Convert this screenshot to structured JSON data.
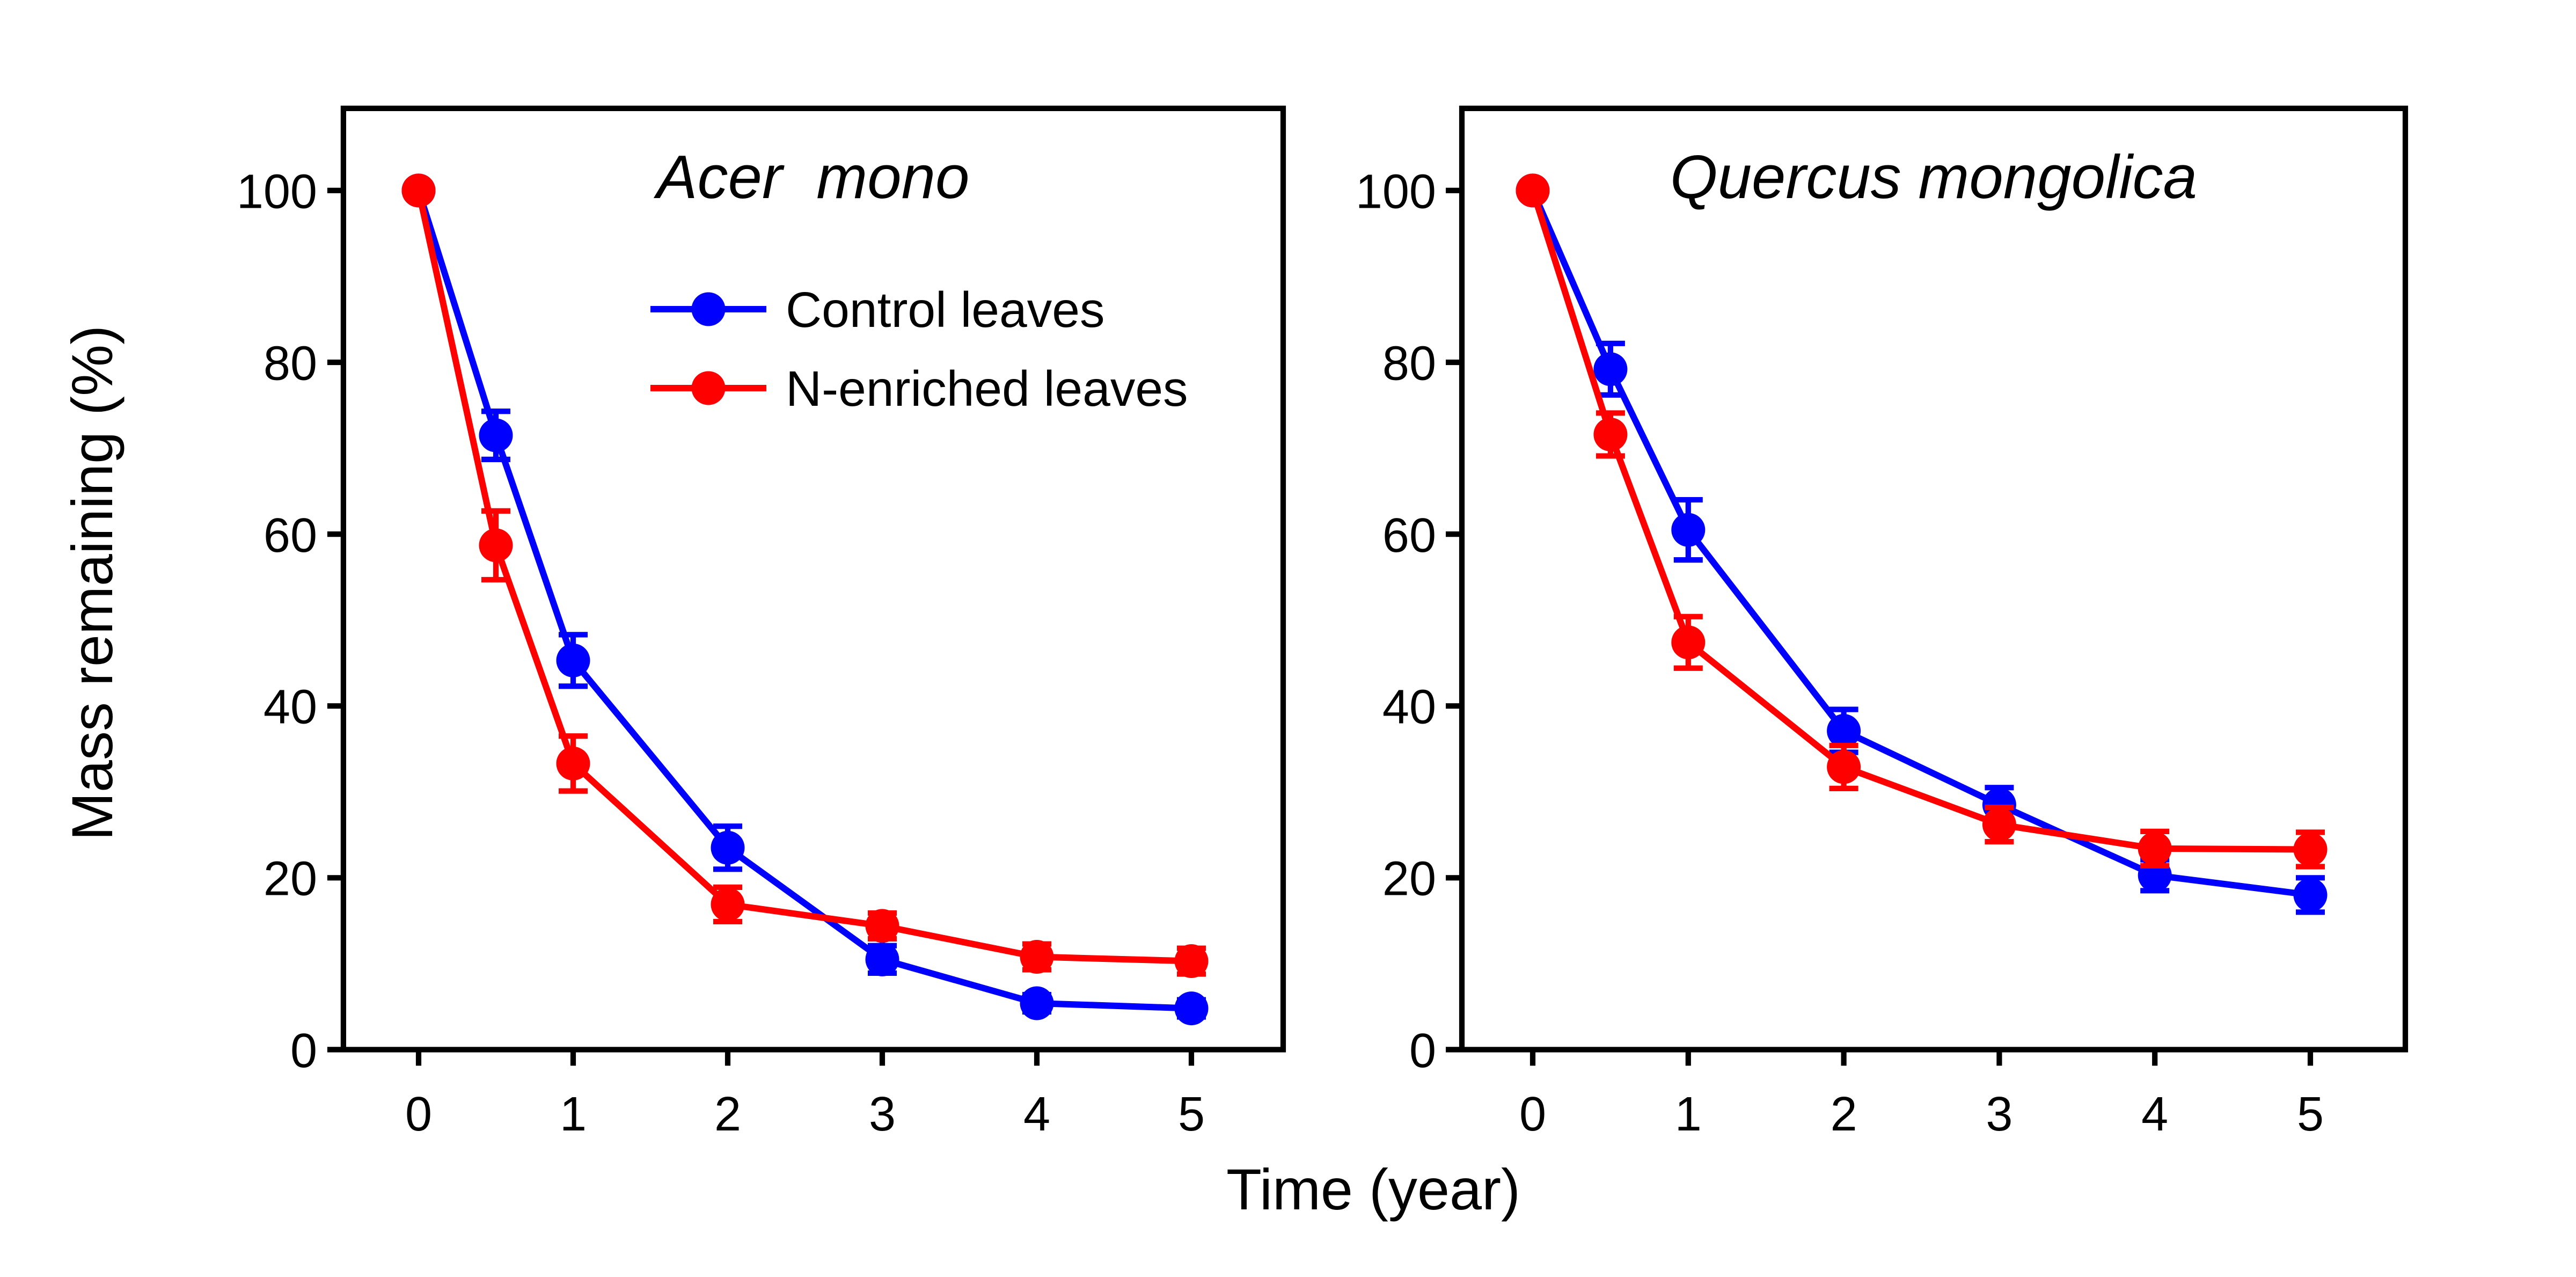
{
  "figure": {
    "background": "#ffffff",
    "x_axis_label": "Time (year)",
    "y_axis_label": "Mass remaining (%)",
    "axis_color": "#000000"
  },
  "legend": {
    "items": [
      {
        "label": "Control leaves",
        "color": "#0000ff"
      },
      {
        "label": "N-enriched leaves",
        "color": "#ff0000"
      }
    ]
  },
  "chart_data": [
    {
      "type": "line",
      "title": "Acer  mono",
      "xlabel": "Time (year)",
      "ylabel": "Mass remaining (%)",
      "x": [
        0,
        0.5,
        1,
        2,
        3,
        4,
        5
      ],
      "x_ticks": [
        0,
        1,
        2,
        3,
        4,
        5
      ],
      "x_tick_labels": [
        "0",
        "1",
        "2",
        "3",
        "4",
        "5"
      ],
      "y_ticks": [
        100,
        80,
        60,
        40,
        20,
        0
      ],
      "y_tick_labels": [
        "100",
        "80",
        "60",
        "40",
        "20",
        "0"
      ],
      "xlim": [
        -0.49,
        5.61
      ],
      "ylim": [
        0,
        109.6
      ],
      "grid": false,
      "series": [
        {
          "name": "Control leaves",
          "color": "#0000ff",
          "values": [
            100,
            71.5,
            45.3,
            23.5,
            10.5,
            5.4,
            4.8
          ],
          "errors": [
            0,
            2.8,
            3.0,
            2.5,
            1.6,
            1.0,
            1.0
          ]
        },
        {
          "name": "N-enriched leaves",
          "color": "#ff0000",
          "values": [
            100,
            58.7,
            33.3,
            16.9,
            14.4,
            10.8,
            10.3
          ],
          "errors": [
            0,
            4.0,
            3.2,
            2.0,
            1.5,
            1.5,
            1.5
          ]
        }
      ]
    },
    {
      "type": "line",
      "title": "Quercus mongolica",
      "xlabel": "Time (year)",
      "ylabel": "Mass remaining (%)",
      "x": [
        0,
        0.5,
        1,
        2,
        3,
        4,
        5
      ],
      "x_ticks": [
        0,
        1,
        2,
        3,
        4,
        5
      ],
      "x_tick_labels": [
        "0",
        "1",
        "2",
        "3",
        "4",
        "5"
      ],
      "y_ticks": [
        100,
        80,
        60,
        40,
        20,
        0
      ],
      "y_tick_labels": [
        "100",
        "80",
        "60",
        "40",
        "20",
        "0"
      ],
      "xlim": [
        -0.49,
        5.61
      ],
      "ylim": [
        0,
        109.6
      ],
      "grid": false,
      "series": [
        {
          "name": "Control leaves",
          "color": "#0000ff",
          "values": [
            100,
            79.2,
            60.5,
            37.1,
            28.5,
            20.3,
            18.0
          ],
          "errors": [
            0,
            3.0,
            3.5,
            2.5,
            2.0,
            1.8,
            2.0
          ]
        },
        {
          "name": "N-enriched leaves",
          "color": "#ff0000",
          "values": [
            100,
            71.6,
            47.4,
            32.9,
            26.2,
            23.4,
            23.3
          ],
          "errors": [
            0,
            2.5,
            3.0,
            2.5,
            2.0,
            2.0,
            2.0
          ]
        }
      ]
    }
  ]
}
